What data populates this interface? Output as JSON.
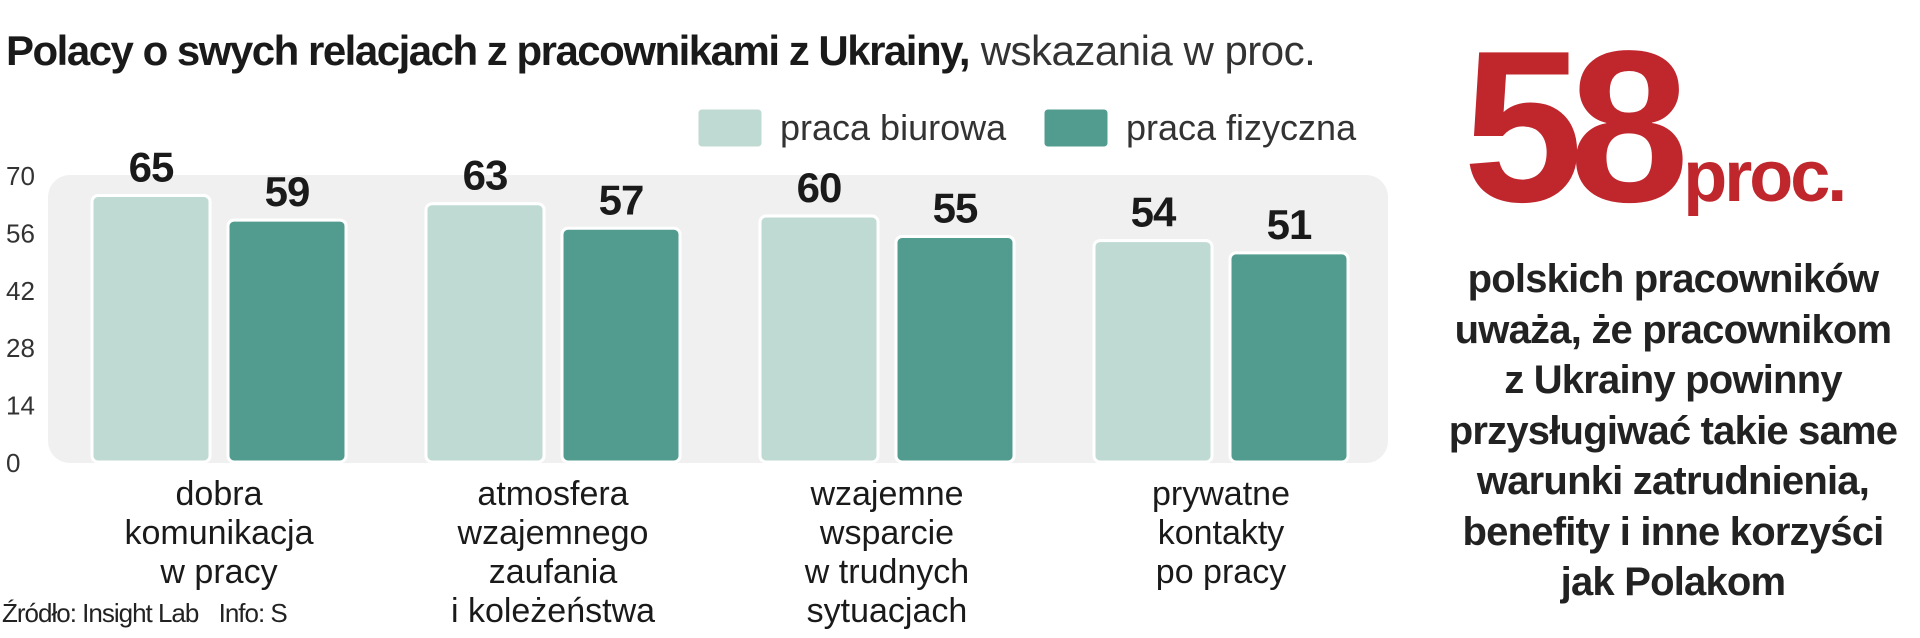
{
  "title": {
    "bold": "Polacy o swych relacjach z  pracownikami z Ukrainy,",
    "light": "wskazania w proc."
  },
  "chart_data": {
    "type": "bar",
    "categories": [
      [
        "dobra",
        "komunikacja",
        "w pracy"
      ],
      [
        "atmosfera",
        "wzajemnego",
        "zaufania",
        "i koleżeństwa"
      ],
      [
        "wzajemne",
        "wsparcie",
        "w trudnych",
        "sytuacjach"
      ],
      [
        "prywatne",
        "kontakty",
        "po pracy"
      ]
    ],
    "series": [
      {
        "name": "praca biurowa",
        "values": [
          65,
          63,
          60,
          54
        ]
      },
      {
        "name": "praca fizyczna",
        "values": [
          59,
          57,
          55,
          51
        ]
      }
    ],
    "ylim": [
      0,
      70
    ],
    "yticks": [
      0,
      14,
      28,
      42,
      56,
      70
    ],
    "legend_position": "top-right",
    "grid": false
  },
  "colors": {
    "series_light": "#bfdad2",
    "series_dark": "#519c8f",
    "plot_background": "#f0f0f0",
    "accent": "#c0272d"
  },
  "source": {
    "source_label": "Źródło: Insight Lab",
    "info_label": "Info: S"
  },
  "highlight": {
    "number": "58",
    "unit": "proc.",
    "lines": [
      "polskich pracowników",
      "uważa, że pracownikom",
      "z Ukrainy powinny",
      "przysługiwać takie same",
      "warunki zatrudnienia,",
      "benefity i inne korzyści",
      "jak Polakom"
    ]
  }
}
